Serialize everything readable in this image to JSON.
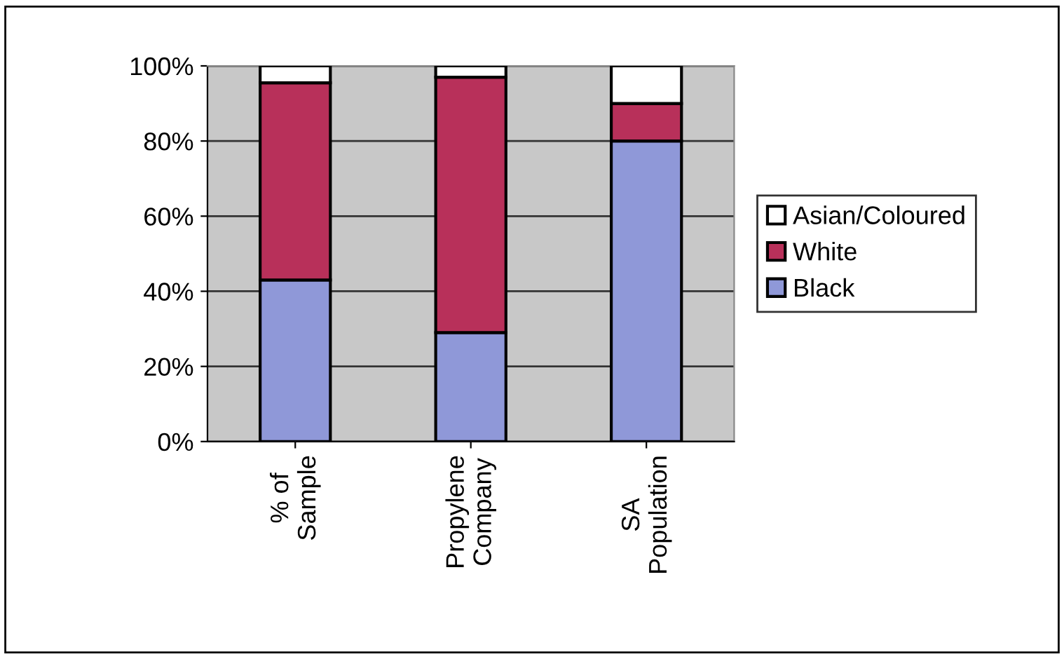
{
  "chart_data": {
    "type": "bar",
    "stacked": true,
    "categories": [
      "% of Sample",
      "Propylene Company",
      "SA Population"
    ],
    "series": [
      {
        "name": "Black",
        "color": "#8f98d8",
        "values": [
          43,
          29,
          80
        ]
      },
      {
        "name": "White",
        "color": "#b8305a",
        "values": [
          52.5,
          68,
          10
        ]
      },
      {
        "name": "Asian/Coloured",
        "color": "#ffffff",
        "values": [
          4.5,
          3,
          10
        ]
      }
    ],
    "ylim": [
      0,
      100
    ],
    "yticks": [
      {
        "value": 0,
        "label": "0%"
      },
      {
        "value": 20,
        "label": "20%"
      },
      {
        "value": 40,
        "label": "40%"
      },
      {
        "value": 60,
        "label": "60%"
      },
      {
        "value": 80,
        "label": "80%"
      },
      {
        "value": 100,
        "label": "100%"
      }
    ],
    "grid": "y",
    "legend": "right"
  }
}
